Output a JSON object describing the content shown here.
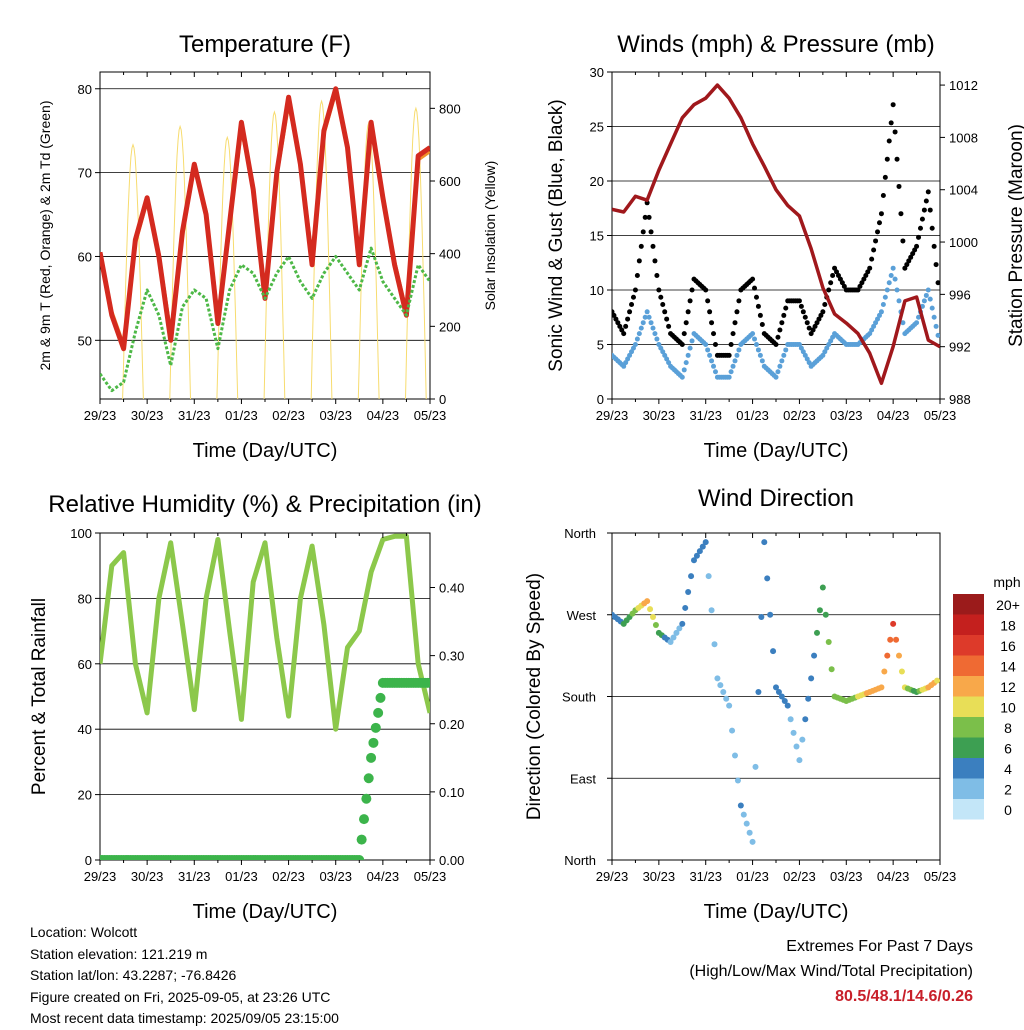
{
  "colors": {
    "temp_red": "#d42a1f",
    "temp_orange": "#f0912a",
    "dewpoint_green": "#4db847",
    "solar_yellow": "#f7dc6f",
    "wind_blue": "#5aa0d8",
    "gust_black": "#000000",
    "pressure_maroon": "#a0181c",
    "rh_lightgreen": "#8cc84b",
    "rain_green": "#3cb44b",
    "extremes_red": "#c8202a"
  },
  "x_ticks": [
    "29/23",
    "30/23",
    "31/23",
    "01/23",
    "02/23",
    "03/23",
    "04/23",
    "05/23"
  ],
  "chart_data": [
    {
      "type": "line",
      "title": "Temperature (F)",
      "xlabel": "Time (Day/UTC)",
      "ylabel": "2m & 9m T (Red, Orange) & 2m Td (Green)",
      "ylabel_right": "Solar Insolation (Yellow)",
      "ylim": [
        43,
        82
      ],
      "ylim_right": [
        0,
        900
      ],
      "yticks": [
        50,
        60,
        70,
        80
      ],
      "yticks_right": [
        0,
        200,
        400,
        600,
        800
      ],
      "x": [
        0,
        0.25,
        0.5,
        0.75,
        1,
        1.25,
        1.5,
        1.75,
        2,
        2.25,
        2.5,
        2.75,
        3,
        3.25,
        3.5,
        3.75,
        4,
        4.25,
        4.5,
        4.75,
        5,
        5.25,
        5.5,
        5.75,
        6,
        6.25,
        6.5,
        6.75,
        7
      ],
      "series": [
        {
          "name": "2m T",
          "color": "#d42a1f",
          "values": [
            60.5,
            53,
            49,
            62,
            67,
            60,
            50,
            63,
            71,
            65,
            52,
            64,
            76,
            68,
            55,
            70,
            79,
            71,
            59,
            75,
            80,
            73,
            59,
            76,
            67,
            59,
            53,
            72,
            73
          ]
        },
        {
          "name": "9m T",
          "color": "#f0912a",
          "values": [
            60.5,
            53.5,
            49.5,
            61.5,
            66.5,
            60.5,
            51,
            62.5,
            70.5,
            65.5,
            53,
            63.5,
            75,
            68.5,
            56,
            69.5,
            78,
            71.5,
            60,
            74.5,
            79.5,
            73.5,
            60,
            75.5,
            67.5,
            59.5,
            53.5,
            71.5,
            72.5
          ]
        },
        {
          "name": "2m Td",
          "color": "#4db847",
          "values": [
            46,
            44,
            45,
            51,
            56,
            53,
            47,
            54,
            56,
            55,
            49,
            56,
            59,
            58,
            55,
            58,
            60,
            57,
            55,
            58,
            60,
            58,
            56,
            61,
            57,
            55,
            53,
            59,
            57
          ]
        }
      ],
      "solar": {
        "name": "Solar Insolation",
        "color": "#f7dc6f",
        "peaks": [
          {
            "day": 0.7,
            "value": 700
          },
          {
            "day": 1.7,
            "value": 750
          },
          {
            "day": 2.7,
            "value": 720
          },
          {
            "day": 3.7,
            "value": 790
          },
          {
            "day": 4.7,
            "value": 820
          },
          {
            "day": 5.7,
            "value": 760
          },
          {
            "day": 6.7,
            "value": 800
          }
        ]
      }
    },
    {
      "type": "scatter",
      "title": "Winds (mph) & Pressure (mb)",
      "xlabel": "Time (Day/UTC)",
      "ylabel": "Sonic Wind & Gust (Blue, Black)",
      "ylabel_right": "Station Pressure (Maroon)",
      "ylim": [
        0,
        30
      ],
      "ylim_right": [
        988,
        1013
      ],
      "yticks": [
        0,
        5,
        10,
        15,
        20,
        25,
        30
      ],
      "yticks_right": [
        988,
        992,
        996,
        1000,
        1004,
        1008,
        1012
      ],
      "x": [
        0,
        0.25,
        0.5,
        0.75,
        1,
        1.25,
        1.5,
        1.75,
        2,
        2.25,
        2.5,
        2.75,
        3,
        3.25,
        3.5,
        3.75,
        4,
        4.25,
        4.5,
        4.75,
        5,
        5.25,
        5.5,
        5.75,
        6,
        6.25,
        6.5,
        6.75,
        7
      ],
      "series": [
        {
          "name": "Sonic Wind",
          "color": "#5aa0d8",
          "values": [
            4,
            3,
            5,
            8,
            5,
            3,
            2,
            6,
            5,
            2,
            2,
            5,
            6,
            3,
            2,
            5,
            5,
            3,
            4,
            6,
            5,
            5,
            6,
            8,
            12,
            6,
            7,
            10,
            5
          ]
        },
        {
          "name": "Gust",
          "color": "#000000",
          "values": [
            8,
            6,
            10,
            18,
            10,
            6,
            5,
            11,
            10,
            4,
            4,
            10,
            11,
            6,
            5,
            9,
            9,
            6,
            8,
            12,
            10,
            10,
            12,
            17,
            27,
            12,
            14,
            19,
            9
          ]
        },
        {
          "name": "Station Pressure",
          "color": "#a0181c",
          "axis": "right",
          "values": [
            1002.5,
            1002.3,
            1003.5,
            1003.2,
            1005.5,
            1007.5,
            1009.5,
            1010.5,
            1011.0,
            1012.0,
            1011.0,
            1009.5,
            1007.5,
            1005.8,
            1004.0,
            1002.8,
            1002.0,
            999.5,
            996.5,
            994.5,
            993.8,
            993.0,
            991.5,
            989.2,
            992.0,
            995.5,
            995.8,
            992.5,
            992.0
          ]
        }
      ]
    },
    {
      "type": "line",
      "title": "Relative Humidity (%) & Precipitation (in)",
      "xlabel": "Time (Day/UTC)",
      "ylabel": "Percent & Total Rainfall",
      "ylim": [
        0,
        100
      ],
      "ylim_right": [
        0,
        0.48
      ],
      "yticks": [
        0,
        20,
        40,
        60,
        80,
        100
      ],
      "yticks_right": [
        0.0,
        0.1,
        0.2,
        0.3,
        0.4
      ],
      "x": [
        0,
        0.25,
        0.5,
        0.75,
        1,
        1.25,
        1.5,
        1.75,
        2,
        2.25,
        2.5,
        2.75,
        3,
        3.25,
        3.5,
        3.75,
        4,
        4.25,
        4.5,
        4.75,
        5,
        5.25,
        5.5,
        5.75,
        6,
        6.25,
        6.5,
        6.75,
        7
      ],
      "series": [
        {
          "name": "Relative Humidity",
          "color": "#8cc84b",
          "values": [
            60,
            90,
            94,
            60,
            45,
            80,
            97,
            72,
            46,
            80,
            98,
            70,
            43,
            85,
            97,
            68,
            44,
            80,
            96,
            72,
            40,
            65,
            70,
            88,
            98,
            99,
            99,
            60,
            45
          ]
        },
        {
          "name": "Total Rainfall",
          "color": "#3cb44b",
          "axis": "right",
          "values": [
            0,
            0,
            0,
            0,
            0,
            0,
            0,
            0,
            0,
            0,
            0,
            0,
            0,
            0,
            0,
            0,
            0,
            0,
            0,
            0,
            0,
            0,
            0,
            0.15,
            0.26,
            0.26,
            0.26,
            0.26,
            0.26
          ]
        }
      ]
    },
    {
      "type": "scatter",
      "title": "Wind Direction",
      "xlabel": "Time (Day/UTC)",
      "ylabel": "Direction (Colored By Speed)",
      "yticks": [
        "North",
        "East",
        "South",
        "West",
        "North"
      ],
      "ylim": [
        0,
        360
      ],
      "x": [
        0,
        0.25,
        0.5,
        0.75,
        1,
        1.25,
        1.5,
        1.75,
        2,
        2.25,
        2.5,
        2.75,
        3,
        3.25,
        3.5,
        3.75,
        4,
        4.25,
        4.5,
        4.75,
        5,
        5.25,
        5.5,
        5.75,
        6,
        6.25,
        6.5,
        6.75,
        7
      ],
      "values": [
        270,
        260,
        275,
        285,
        250,
        240,
        260,
        330,
        350,
        200,
        170,
        60,
        20,
        350,
        190,
        170,
        110,
        200,
        300,
        180,
        175,
        180,
        185,
        190,
        260,
        190,
        185,
        190,
        200
      ],
      "speeds": [
        4,
        5,
        8,
        12,
        6,
        2,
        3,
        4,
        3,
        1,
        2,
        3,
        2,
        4,
        3,
        3,
        2,
        4,
        6,
        8,
        8,
        9,
        12,
        11,
        16,
        9,
        6,
        12,
        10
      ],
      "legend": {
        "title": "mph",
        "labels": [
          "20+",
          "18",
          "16",
          "14",
          "12",
          "10",
          "8",
          "6",
          "4",
          "2",
          "0"
        ],
        "colors": [
          "#9b1b1b",
          "#c4201e",
          "#dd3a2a",
          "#ef6a33",
          "#f8a84a",
          "#e8de57",
          "#7bbf4a",
          "#3d9f52",
          "#3b7fbf",
          "#7fbde6",
          "#c3e6f8"
        ]
      }
    }
  ],
  "info": {
    "location": "Location: Wolcott",
    "elevation": "Station elevation: 121.219 m",
    "latlon": "Station lat/lon: 43.2287; -76.8426",
    "created": "Figure created on Fri, 2025-09-05, at 23:26 UTC",
    "timestamp": "Most recent data timestamp: 2025/09/05 23:15:00"
  },
  "extremes": {
    "title": "Extremes For Past 7 Days",
    "subtitle": "(High/Low/Max Wind/Total Precipitation)",
    "values": "80.5/48.1/14.6/0.26"
  }
}
